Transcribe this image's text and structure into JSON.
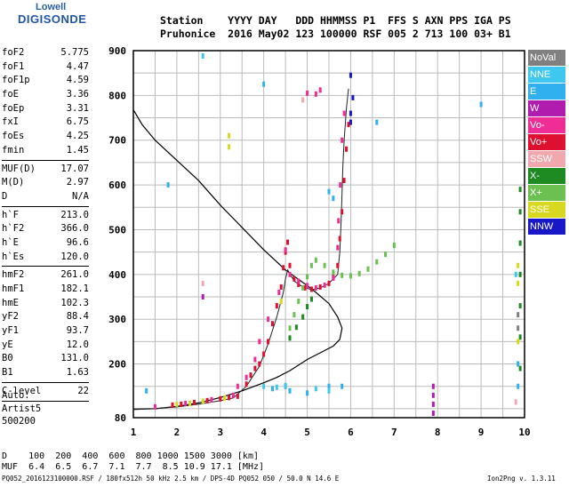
{
  "logo": {
    "line1": "Lowell",
    "line2": "DIGISONDE"
  },
  "header": {
    "line1": "Station    YYYY DAY   DDD HHMMSS P1  FFS S AXN PPS IGA PS",
    "line2": "Pruhonice  2016 May02 123 100000 RSF 005 2 713 100 03+ B1"
  },
  "params_groups": [
    [
      [
        "foF2",
        "5.775"
      ],
      [
        "foF1",
        "4.47"
      ],
      [
        "foF1p",
        "4.59"
      ],
      [
        "foE",
        "3.36"
      ],
      [
        "foEp",
        "3.31"
      ],
      [
        "fxI",
        "6.75"
      ],
      [
        "foEs",
        "4.25"
      ],
      [
        "fmin",
        "1.45"
      ]
    ],
    [
      [
        "MUF(D)",
        "17.07"
      ],
      [
        "M(D)",
        "2.97"
      ],
      [
        "D",
        "N/A"
      ]
    ],
    [
      [
        "h`F",
        "213.0"
      ],
      [
        "h`F2",
        "366.0"
      ],
      [
        "h`E",
        "96.6"
      ],
      [
        "h`Es",
        "120.0"
      ]
    ],
    [
      [
        "hmF2",
        "261.0"
      ],
      [
        "hmF1",
        "182.1"
      ],
      [
        "hmE",
        "102.3"
      ],
      [
        "yF2",
        "88.4"
      ],
      [
        "yF1",
        "93.7"
      ],
      [
        "yE",
        "12.0"
      ],
      [
        "B0",
        "131.0"
      ],
      [
        "B1",
        "1.63"
      ]
    ],
    [
      [
        "C-level",
        "22"
      ]
    ]
  ],
  "auto": {
    "line1": "Auto:",
    "line2": "Artist5",
    "line3": "500200"
  },
  "legend": [
    {
      "label": "NoVal",
      "color": "#808080"
    },
    {
      "label": "NNE",
      "color": "#3ec8f0"
    },
    {
      "label": "E",
      "color": "#30b0ee"
    },
    {
      "label": "W",
      "color": "#b01cae"
    },
    {
      "label": "Vo-",
      "color": "#ee2e96"
    },
    {
      "label": "Vo+",
      "color": "#dd1030"
    },
    {
      "label": "SSW",
      "color": "#f0a8ae"
    },
    {
      "label": "X-",
      "color": "#1e8a22"
    },
    {
      "label": "X+",
      "color": "#6cc052"
    },
    {
      "label": "SSE",
      "color": "#d8d820"
    },
    {
      "label": "NNW",
      "color": "#1818c8"
    }
  ],
  "distance_table": {
    "line1": "D    100  200  400  600  800 1000 1500 3000 [km]",
    "line2": "MUF  6.4  6.5  6.7  7.1  7.7  8.5 10.9 17.1 [MHz]"
  },
  "footer": "PQ052_2016123100000.RSF / 180fx512h 50 kHz 2.5 km / DPS-4D PQ052 050 / 50.0 N 14.6 E",
  "version": "Ion2Png v. 1.3.11",
  "chart_data": {
    "type": "scatter",
    "title": "",
    "xlabel": "",
    "ylabel": "",
    "xlim": [
      1,
      10
    ],
    "ylim": [
      80,
      900
    ],
    "x_ticks": [
      1,
      2,
      3,
      4,
      5,
      6,
      7,
      8,
      9,
      10
    ],
    "y_ticks": [
      80,
      200,
      300,
      400,
      500,
      600,
      700,
      800,
      900
    ],
    "grid": true,
    "profile_curve": [
      [
        1.0,
        768
      ],
      [
        1.2,
        735
      ],
      [
        1.5,
        700
      ],
      [
        2.0,
        655
      ],
      [
        2.5,
        610
      ],
      [
        3.0,
        555
      ],
      [
        3.5,
        505
      ],
      [
        4.0,
        455
      ],
      [
        4.5,
        410
      ],
      [
        5.0,
        375
      ],
      [
        5.2,
        360
      ],
      [
        5.5,
        335
      ],
      [
        5.7,
        305
      ],
      [
        5.8,
        280
      ],
      [
        5.75,
        255
      ],
      [
        5.6,
        240
      ],
      [
        5.3,
        225
      ],
      [
        5.0,
        210
      ],
      [
        4.6,
        185
      ],
      [
        4.3,
        170
      ],
      [
        4.0,
        158
      ],
      [
        3.5,
        140
      ],
      [
        3.0,
        125
      ],
      [
        2.5,
        113
      ],
      [
        2.0,
        105
      ],
      [
        1.5,
        100
      ],
      [
        1.0,
        99
      ]
    ],
    "trace_curve": [
      [
        1.0,
        98
      ],
      [
        1.5,
        100
      ],
      [
        2.0,
        104
      ],
      [
        2.5,
        110
      ],
      [
        3.0,
        118
      ],
      [
        3.3,
        124
      ],
      [
        3.6,
        150
      ],
      [
        3.9,
        195
      ],
      [
        4.1,
        245
      ],
      [
        4.3,
        305
      ],
      [
        4.45,
        360
      ],
      [
        4.5,
        390
      ],
      [
        4.55,
        410
      ],
      [
        4.7,
        385
      ],
      [
        4.9,
        372
      ],
      [
        5.1,
        366
      ],
      [
        5.3,
        370
      ],
      [
        5.5,
        380
      ],
      [
        5.7,
        400
      ],
      [
        5.75,
        450
      ],
      [
        5.78,
        520
      ],
      [
        5.8,
        580
      ],
      [
        5.82,
        640
      ],
      [
        5.85,
        700
      ],
      [
        5.9,
        770
      ],
      [
        5.95,
        815
      ]
    ],
    "series": [
      {
        "name": "Vo+",
        "color": "#dd1030",
        "points": [
          [
            1.9,
            108
          ],
          [
            2.1,
            110
          ],
          [
            2.4,
            114
          ],
          [
            2.7,
            118
          ],
          [
            3.0,
            122
          ],
          [
            3.2,
            125
          ],
          [
            3.4,
            128
          ],
          [
            3.6,
            155
          ],
          [
            3.7,
            175
          ],
          [
            3.8,
            190
          ],
          [
            3.9,
            200
          ],
          [
            4.0,
            222
          ],
          [
            4.1,
            250
          ],
          [
            4.2,
            290
          ],
          [
            4.3,
            330
          ],
          [
            4.4,
            372
          ],
          [
            4.45,
            415
          ],
          [
            4.5,
            450
          ],
          [
            4.55,
            472
          ],
          [
            4.6,
            420
          ],
          [
            4.7,
            390
          ],
          [
            4.8,
            378
          ],
          [
            4.95,
            370
          ],
          [
            5.1,
            367
          ],
          [
            5.3,
            372
          ],
          [
            5.5,
            380
          ],
          [
            5.6,
            395
          ],
          [
            5.7,
            420
          ],
          [
            5.75,
            480
          ],
          [
            5.8,
            540
          ],
          [
            5.85,
            610
          ],
          [
            5.9,
            680
          ],
          [
            5.95,
            735
          ]
        ]
      },
      {
        "name": "Vo-",
        "color": "#ee2e96",
        "points": [
          [
            1.5,
            104
          ],
          [
            2.2,
            112
          ],
          [
            2.8,
            120
          ],
          [
            3.3,
            130
          ],
          [
            3.4,
            150
          ],
          [
            3.6,
            170
          ],
          [
            3.8,
            210
          ],
          [
            3.9,
            250
          ],
          [
            4.1,
            300
          ],
          [
            4.35,
            360
          ],
          [
            4.5,
            455
          ],
          [
            4.6,
            400
          ],
          [
            4.8,
            385
          ],
          [
            5.0,
            375
          ],
          [
            5.2,
            370
          ],
          [
            5.4,
            376
          ],
          [
            5.6,
            392
          ],
          [
            5.7,
            460
          ],
          [
            5.72,
            520
          ],
          [
            5.76,
            600
          ],
          [
            5.8,
            700
          ],
          [
            5.85,
            760
          ],
          [
            5.0,
            805
          ],
          [
            5.2,
            803
          ],
          [
            5.3,
            812
          ]
        ]
      },
      {
        "name": "X+",
        "color": "#6cc052",
        "points": [
          [
            4.6,
            280
          ],
          [
            4.7,
            310
          ],
          [
            4.8,
            340
          ],
          [
            4.9,
            370
          ],
          [
            5.0,
            395
          ],
          [
            5.1,
            420
          ],
          [
            5.2,
            432
          ],
          [
            5.4,
            420
          ],
          [
            5.6,
            405
          ],
          [
            5.8,
            398
          ],
          [
            6.0,
            397
          ],
          [
            6.2,
            402
          ],
          [
            6.4,
            412
          ],
          [
            6.6,
            428
          ],
          [
            6.8,
            445
          ],
          [
            7.0,
            465
          ]
        ]
      },
      {
        "name": "X-",
        "color": "#1e8a22",
        "points": [
          [
            4.6,
            258
          ],
          [
            4.75,
            282
          ],
          [
            4.9,
            305
          ],
          [
            5.0,
            328
          ],
          [
            5.1,
            345
          ],
          [
            9.9,
            590
          ],
          [
            9.9,
            540
          ],
          [
            9.9,
            470
          ],
          [
            9.9,
            400
          ],
          [
            9.9,
            330
          ],
          [
            9.9,
            260
          ],
          [
            9.9,
            190
          ]
        ]
      },
      {
        "name": "SSE",
        "color": "#d8d820",
        "points": [
          [
            2.0,
            110
          ],
          [
            2.3,
            112
          ],
          [
            2.6,
            117
          ],
          [
            3.1,
            124
          ],
          [
            3.2,
            685
          ],
          [
            3.2,
            710
          ],
          [
            4.4,
            340
          ],
          [
            9.85,
            420
          ],
          [
            9.85,
            380
          ],
          [
            9.85,
            250
          ],
          [
            9.85,
            200
          ]
        ]
      },
      {
        "name": "E",
        "color": "#30b0ee",
        "points": [
          [
            1.3,
            140
          ],
          [
            4.2,
            145
          ],
          [
            4.5,
            150
          ],
          [
            4.6,
            140
          ],
          [
            5.0,
            135
          ],
          [
            5.5,
            150
          ],
          [
            5.8,
            150
          ],
          [
            9.0,
            780
          ],
          [
            1.8,
            600
          ],
          [
            4.0,
            825
          ],
          [
            5.5,
            585
          ],
          [
            5.6,
            570
          ],
          [
            6.6,
            740
          ],
          [
            9.85,
            200
          ],
          [
            9.85,
            150
          ]
        ]
      },
      {
        "name": "NNE",
        "color": "#3ec8f0",
        "points": [
          [
            2.6,
            888
          ],
          [
            4.0,
            150
          ],
          [
            4.3,
            148
          ],
          [
            4.5,
            152
          ],
          [
            5.2,
            145
          ],
          [
            5.5,
            140
          ],
          [
            9.8,
            400
          ]
        ]
      },
      {
        "name": "W",
        "color": "#b01cae",
        "points": [
          [
            7.9,
            90
          ],
          [
            7.9,
            110
          ],
          [
            7.9,
            130
          ],
          [
            7.9,
            150
          ],
          [
            2.6,
            350
          ]
        ]
      },
      {
        "name": "SSW",
        "color": "#f0a8ae",
        "points": [
          [
            2.6,
            380
          ],
          [
            4.9,
            790
          ],
          [
            9.8,
            115
          ]
        ]
      },
      {
        "name": "NNW",
        "color": "#1818c8",
        "points": [
          [
            6.0,
            845
          ],
          [
            6.05,
            795
          ],
          [
            6.0,
            760
          ],
          [
            6.0,
            740
          ]
        ]
      },
      {
        "name": "NoVal",
        "color": "#808080",
        "points": [
          [
            9.85,
            310
          ],
          [
            9.85,
            280
          ]
        ]
      }
    ]
  }
}
